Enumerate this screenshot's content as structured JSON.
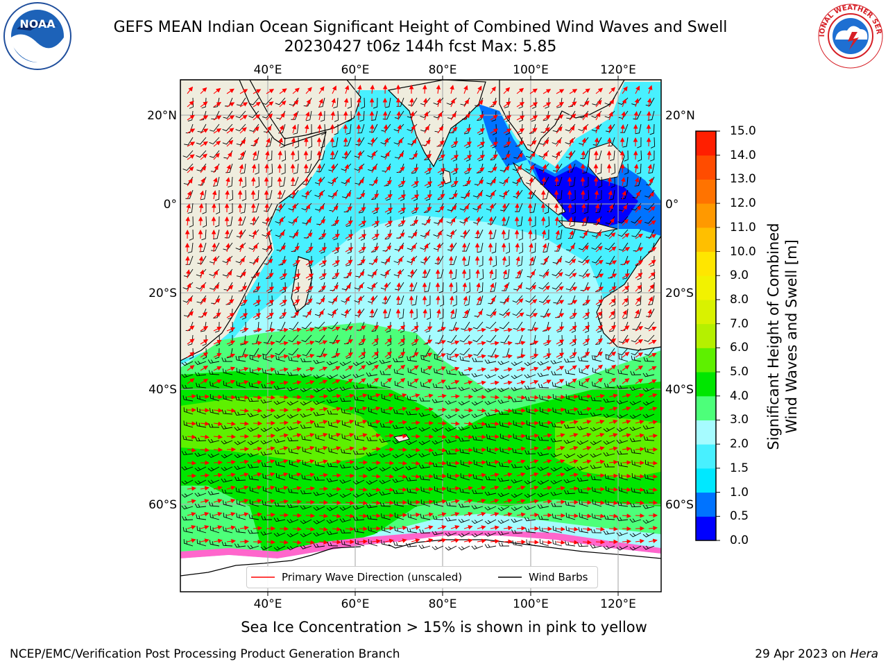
{
  "title_line1": "GEFS MEAN Indian Ocean Significant Height of Combined Wind Waves and Swell",
  "title_line2": "20230427 t06z 144h fcst   Max: 5.85",
  "lon_labels": [
    "40°E",
    "60°E",
    "80°E",
    "100°E",
    "120°E"
  ],
  "lat_labels": [
    "20°N",
    "0°",
    "20°S",
    "40°S",
    "60°S"
  ],
  "colorbar": {
    "ticks": [
      "0.0",
      "0.5",
      "1.0",
      "1.5",
      "2.0",
      "3.0",
      "4.0",
      "5.0",
      "6.0",
      "7.0",
      "8.0",
      "9.0",
      "10.0",
      "11.0",
      "12.0",
      "13.0",
      "14.0",
      "15.0"
    ],
    "colors": [
      "#0000ff",
      "#0073ff",
      "#00e8ff",
      "#48f0ff",
      "#a6fbff",
      "#4dff7a",
      "#00e600",
      "#5ef000",
      "#b5f000",
      "#d9f200",
      "#f2f200",
      "#ffe600",
      "#ffbf00",
      "#ff9900",
      "#ff7300",
      "#ff4c00",
      "#ff1f00"
    ],
    "title_line1": "Significant Height of Combined",
    "title_line2": "Wind Waves and Swell [m]"
  },
  "legend": {
    "wave_label": "Primary Wave Direction (unscaled)",
    "wind_label": "Wind Barbs"
  },
  "subtitle": "Sea Ice Concentration > 15% is shown in pink to yellow",
  "footer_left": "NCEP/EMC/Verification Post Processing Product Generation Branch",
  "footer_date": "29 Apr 2023 on",
  "footer_machine": "Hera",
  "logos": {
    "noaa_text": "NOAA",
    "nws_text": "NATIONAL WEATHER SERVICE"
  },
  "colors": {
    "land": "#efedde",
    "ice": "#ffffff",
    "wave_arrow": "#ff0000",
    "wind_barb": "#000000"
  }
}
